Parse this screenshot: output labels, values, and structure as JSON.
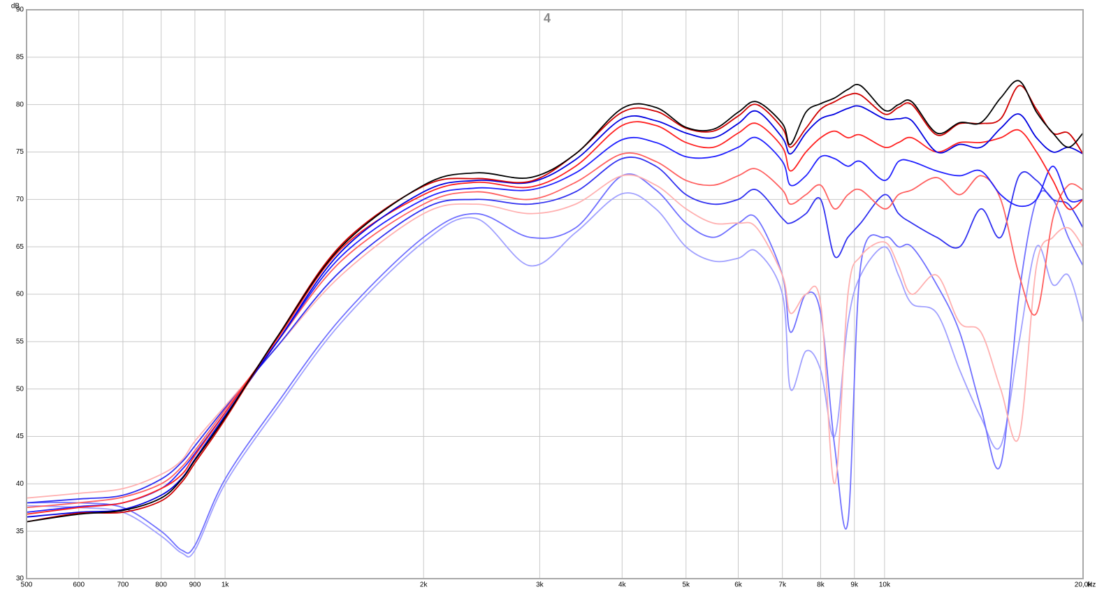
{
  "chart_data": {
    "type": "line",
    "title": "4",
    "y_label": "dB",
    "x_label": "Hz",
    "log_x": true,
    "grid": true,
    "x": [
      500,
      600,
      700,
      800,
      860,
      900,
      1000,
      1200,
      1500,
      2000,
      2400,
      2900,
      3400,
      4000,
      4500,
      5000,
      5500,
      6000,
      6400,
      7000,
      7200,
      7600,
      8000,
      8400,
      8800,
      9200,
      10000,
      10500,
      11000,
      12000,
      13000,
      14000,
      15000,
      16000,
      17000,
      18000,
      19000,
      20000
    ],
    "xlim": [
      500,
      20000
    ],
    "xticks": [
      500,
      600,
      700,
      800,
      900,
      {
        "value": 1000,
        "label": "1k"
      },
      {
        "value": 2000,
        "label": "2k"
      },
      {
        "value": 3000,
        "label": "3k"
      },
      {
        "value": 4000,
        "label": "4k"
      },
      {
        "value": 5000,
        "label": "5k"
      },
      {
        "value": 6000,
        "label": "6k"
      },
      {
        "value": 7000,
        "label": "7k"
      },
      {
        "value": 8000,
        "label": "8k"
      },
      {
        "value": 9000,
        "label": "9k"
      },
      {
        "value": 10000,
        "label": "10k"
      },
      {
        "value": 20000,
        "label": "20,0k"
      }
    ],
    "ylim": [
      30,
      90
    ],
    "yticks": [
      30,
      35,
      40,
      45,
      50,
      55,
      60,
      65,
      70,
      75,
      80,
      85,
      90
    ],
    "series": [
      {
        "color": "#a0a0ff",
        "values": [
          37.7,
          37.5,
          37,
          34.5,
          32.7,
          33,
          40,
          48,
          57,
          65.5,
          68,
          63,
          66.5,
          70.6,
          69,
          65,
          63.5,
          63.8,
          64.5,
          60,
          50,
          54,
          52,
          45,
          57,
          62,
          65,
          62,
          59,
          58,
          52,
          47,
          44,
          55,
          65,
          61,
          62,
          57
        ]
      },
      {
        "color": "#7070ff",
        "values": [
          38,
          38,
          37.5,
          35,
          33,
          33.5,
          40.5,
          48.5,
          57.5,
          66,
          68.5,
          66,
          67,
          72.5,
          71,
          67.5,
          66,
          67.5,
          68,
          62,
          56,
          60,
          58,
          44,
          36,
          63,
          66,
          65,
          65,
          61,
          56,
          48,
          42,
          60,
          70,
          70,
          66,
          63
        ]
      },
      {
        "color": "#ffb0b0",
        "values": [
          38.5,
          39,
          39.5,
          41,
          42.5,
          44.5,
          48.2,
          54.5,
          62,
          68.5,
          69.5,
          68.5,
          69.5,
          72.5,
          71.5,
          69,
          67.5,
          67.5,
          67,
          62,
          58,
          60,
          59,
          40,
          60,
          64,
          65.5,
          63,
          60,
          62,
          57,
          56,
          50,
          45,
          63,
          66,
          67,
          65
        ]
      },
      {
        "color": "#3030f0",
        "values": [
          38,
          38.4,
          38.8,
          40.5,
          42.3,
          44,
          48,
          54.5,
          62.5,
          69,
          70,
          69.5,
          70.8,
          74.3,
          73.5,
          70.5,
          69.5,
          70,
          71,
          68,
          67.5,
          68.5,
          70,
          64,
          66,
          67.5,
          70.5,
          68.5,
          67.5,
          66,
          65,
          69,
          66,
          72.5,
          72,
          70,
          69.5,
          67
        ]
      },
      {
        "color": "#ff6060",
        "values": [
          37.5,
          38,
          38.6,
          40,
          41.8,
          43.5,
          47.8,
          55,
          63.5,
          69.5,
          70.8,
          70,
          71.8,
          74.8,
          74,
          72,
          71.5,
          72.5,
          73.2,
          71,
          69.5,
          70.5,
          71.5,
          69,
          70.5,
          71,
          69,
          70.5,
          71,
          72.3,
          70.5,
          72.5,
          70,
          62,
          58,
          68,
          71.5,
          71
        ]
      },
      {
        "color": "#2020ff",
        "values": [
          37,
          37.6,
          38,
          39.5,
          41.5,
          43.2,
          47.5,
          55,
          64,
          70,
          71.2,
          71,
          72.8,
          76.3,
          76,
          74.5,
          74.5,
          75.5,
          76.5,
          74,
          71.5,
          72.5,
          74.5,
          74.3,
          73.5,
          74,
          72,
          74,
          74,
          73,
          72.5,
          73,
          70.5,
          69.3,
          70,
          73.5,
          70,
          70
        ]
      },
      {
        "color": "#ff2020",
        "values": [
          36.8,
          37.5,
          38,
          39.5,
          41,
          43,
          47.5,
          55.3,
          64.8,
          70.5,
          71.8,
          71.3,
          73.5,
          77.8,
          77.8,
          76,
          75.5,
          77,
          78,
          75.5,
          73,
          75,
          76.5,
          77.2,
          76.5,
          76.8,
          75.5,
          76,
          76.5,
          75,
          76,
          76,
          76.5,
          77.3,
          75,
          72,
          69,
          70
        ]
      },
      {
        "color": "#0000e0",
        "values": [
          36.5,
          37,
          37.3,
          38.8,
          40.6,
          42.6,
          47.2,
          55,
          64.5,
          70.8,
          72,
          71.8,
          74.2,
          78.5,
          78.3,
          77,
          76.5,
          78,
          79.3,
          76.5,
          74.8,
          77,
          78.5,
          79,
          79.6,
          79.8,
          78.5,
          78.5,
          78.3,
          75,
          75.8,
          75.5,
          77.5,
          79,
          76.5,
          75,
          75.5,
          74.8
        ]
      },
      {
        "color": "#d00000",
        "values": [
          36,
          36.9,
          37,
          38.2,
          40.2,
          42.2,
          46.8,
          55.5,
          65.2,
          71.4,
          72.2,
          71.9,
          74.8,
          79.2,
          79.3,
          77.5,
          77.2,
          78.8,
          80,
          77.5,
          75.5,
          77.5,
          79.5,
          80.3,
          81,
          81,
          79,
          79.7,
          80,
          76.8,
          78,
          78,
          78.5,
          82,
          79.5,
          77,
          77,
          74.8
        ]
      },
      {
        "color": "#000000",
        "values": [
          36,
          36.8,
          37.2,
          38.5,
          40.5,
          42.5,
          47,
          55.5,
          65,
          71.5,
          72.8,
          72.3,
          74.8,
          79.6,
          79.7,
          77.6,
          77.4,
          79.2,
          80.3,
          78,
          75.8,
          79.2,
          80.1,
          80.7,
          81.6,
          82,
          79.4,
          80,
          80.3,
          77,
          78.1,
          78.1,
          80.7,
          82.5,
          79.2,
          77,
          75.5,
          77
        ]
      }
    ]
  }
}
